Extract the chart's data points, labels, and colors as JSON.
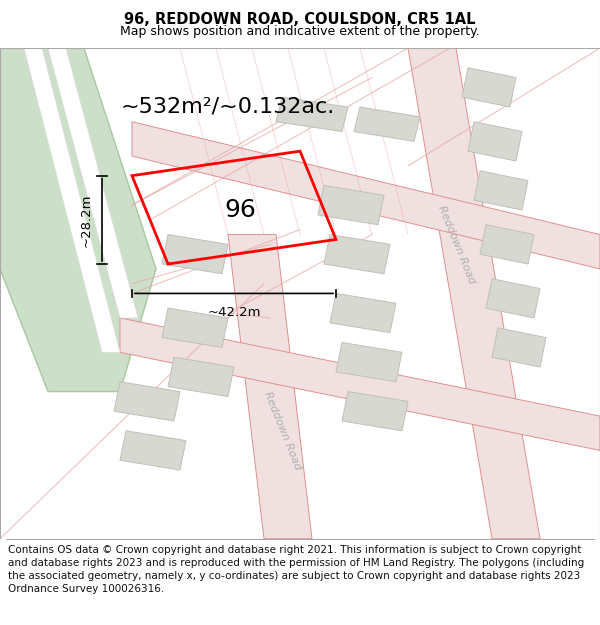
{
  "title": "96, REDDOWN ROAD, COULSDON, CR5 1AL",
  "subtitle": "Map shows position and indicative extent of the property.",
  "footer": "Contains OS data © Crown copyright and database right 2021. This information is subject to Crown copyright and database rights 2023 and is reproduced with the permission of HM Land Registry. The polygons (including the associated geometry, namely x, y co-ordinates) are subject to Crown copyright and database rights 2023 Ordnance Survey 100026316.",
  "map_bg": "#f7f7f4",
  "road_fill": "#f0e0e0",
  "road_edge": "#e09090",
  "building_fill": "#d8d8d2",
  "building_edge": "#c0c0b8",
  "green_fill": "#ccdfc8",
  "green_edge": "#a8c8a0",
  "white_fill": "#ffffff",
  "highlight_color": "#ff0000",
  "area_text": "~532m²/~0.132ac.",
  "number_text": "96",
  "dim_width": "~42.2m",
  "dim_height": "~28.2m",
  "road_label1": "Reddown Road",
  "road_label2": "Reddown Road",
  "title_fontsize": 10.5,
  "subtitle_fontsize": 9,
  "footer_fontsize": 7.5,
  "area_fontsize": 16,
  "number_fontsize": 18,
  "dim_fontsize": 9.5,
  "road_label_fontsize": 8
}
